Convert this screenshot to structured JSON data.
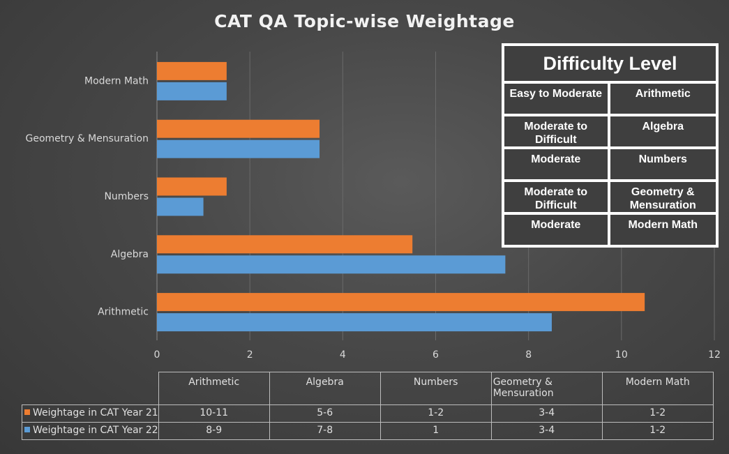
{
  "colors": {
    "orange": "#ed7d31",
    "blue": "#5b9bd5",
    "grid": "#6a6a6a"
  },
  "chart_data": {
    "type": "bar",
    "orientation": "horizontal",
    "title": "CAT QA Topic-wise Weightage",
    "categories": [
      "Arithmetic",
      "Algebra",
      "Numbers",
      "Geometry & Mensuration",
      "Modern Math"
    ],
    "series": [
      {
        "name": "Weightage in CAT Year 21",
        "color": "#ed7d31",
        "values": [
          10.5,
          5.5,
          1.5,
          3.5,
          1.5
        ]
      },
      {
        "name": "Weightage in CAT Year 22",
        "color": "#5b9bd5",
        "values": [
          8.5,
          7.5,
          1,
          3.5,
          1.5
        ]
      }
    ],
    "xlim": [
      0,
      12
    ],
    "xticks": [
      "0",
      "2",
      "4",
      "6",
      "8",
      "10",
      "12"
    ],
    "grid": "vertical",
    "legend": "data-table-bottom"
  },
  "difficulty_table": {
    "title": "Difficulty Level",
    "rows": [
      {
        "level": "Easy to Moderate",
        "topic": "Arithmetic"
      },
      {
        "level": "Moderate to Difficult",
        "topic": "Algebra"
      },
      {
        "level": "Moderate",
        "topic": "Numbers"
      },
      {
        "level": "Moderate to Difficult",
        "topic": "Geometry & Mensuration"
      },
      {
        "level": "Moderate",
        "topic": "Modern Math"
      }
    ]
  },
  "data_table": {
    "headers": [
      "Arithmetic",
      "Algebra",
      "Numbers",
      "Geometry & Mensuration",
      "Modern Math"
    ],
    "rows": [
      {
        "label": "Weightage in CAT Year 21",
        "color": "#ed7d31",
        "values": [
          "10-11",
          "5-6",
          "1-2",
          "3-4",
          "1-2"
        ]
      },
      {
        "label": "Weightage in CAT Year 22",
        "color": "#5b9bd5",
        "values": [
          "8-9",
          "7-8",
          "1",
          "3-4",
          "1-2"
        ]
      }
    ]
  }
}
